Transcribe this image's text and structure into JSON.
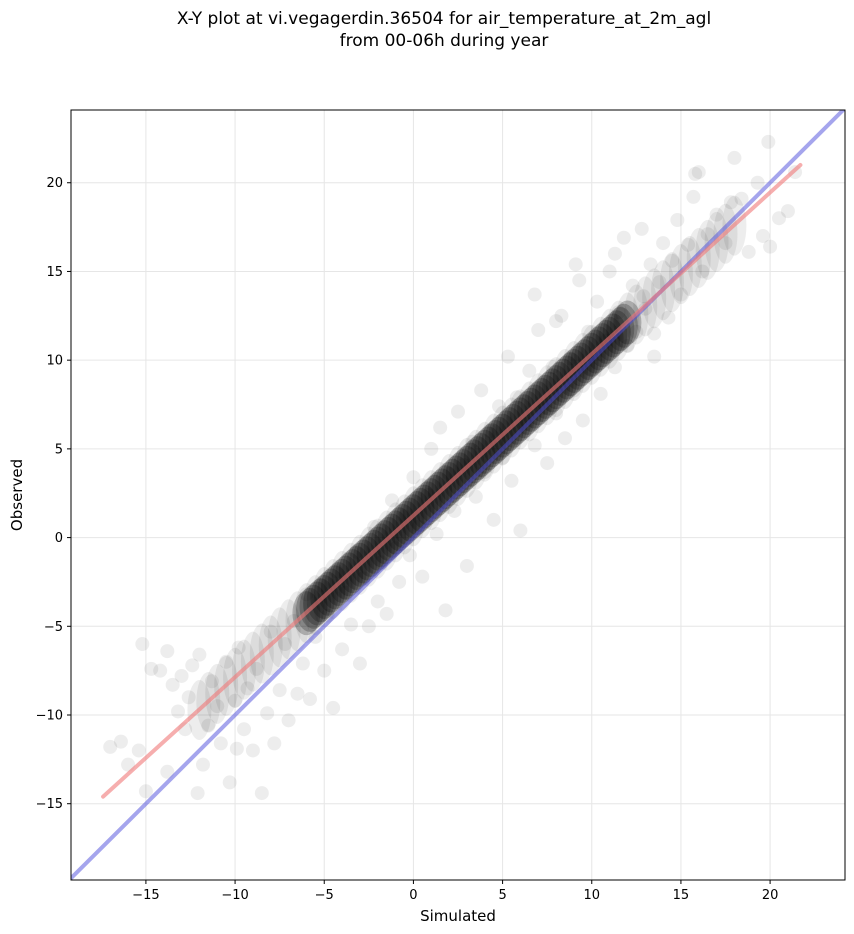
{
  "title_lines": [
    "X-Y plot at vi.vegagerdin.36504 for air_temperature_at_2m_agl",
    "from 00-06h during year"
  ],
  "chart_data": {
    "type": "scatter",
    "xlabel": "Simulated",
    "ylabel": "Observed",
    "xlim": [
      -19.2,
      24.2
    ],
    "ylim": [
      -19.3,
      24.1
    ],
    "x_ticks": [
      -15,
      -10,
      -5,
      0,
      5,
      10,
      15,
      20
    ],
    "y_ticks": [
      -15,
      -10,
      -5,
      0,
      5,
      10,
      15,
      20
    ],
    "x_tick_labels": [
      "−15",
      "−10",
      "−5",
      "0",
      "5",
      "10",
      "15",
      "20"
    ],
    "y_tick_labels": [
      "−15",
      "−10",
      "−5",
      "0",
      "5",
      "10",
      "15",
      "20"
    ],
    "grid": true,
    "point_color": "#000000",
    "point_alpha": 0.07,
    "reference_line": {
      "x": [
        -19.2,
        24.2
      ],
      "y": [
        -19.2,
        24.2
      ],
      "color": "#4b4bdc"
    },
    "fit_line": {
      "x": [
        -17.4,
        21.7
      ],
      "y": [
        -14.6,
        21.0
      ],
      "color": "#f07878"
    },
    "points": [
      [
        -17.0,
        -11.8
      ],
      [
        -16.4,
        -11.5
      ],
      [
        -16.0,
        -12.8
      ],
      [
        -15.4,
        -12.0
      ],
      [
        -15.0,
        -14.3
      ],
      [
        -15.2,
        -6.0
      ],
      [
        -14.7,
        -7.4
      ],
      [
        -14.2,
        -7.5
      ],
      [
        -13.8,
        -6.4
      ],
      [
        -13.5,
        -8.3
      ],
      [
        -13.2,
        -9.8
      ],
      [
        -13.0,
        -7.8
      ],
      [
        -12.8,
        -10.8
      ],
      [
        -12.6,
        -9.0
      ],
      [
        -12.4,
        -7.2
      ],
      [
        -12.0,
        -6.6
      ],
      [
        -11.8,
        -12.8
      ],
      [
        -11.5,
        -10.6
      ],
      [
        -11.3,
        -8.1
      ],
      [
        -11.0,
        -9.5
      ],
      [
        -10.8,
        -11.6
      ],
      [
        -10.5,
        -7.0
      ],
      [
        -10.3,
        -13.8
      ],
      [
        -10.0,
        -9.2
      ],
      [
        -9.8,
        -6.2
      ],
      [
        -9.5,
        -10.8
      ],
      [
        -9.3,
        -8.5
      ],
      [
        -9.0,
        -12.0
      ],
      [
        -8.8,
        -7.4
      ],
      [
        -8.5,
        -14.4
      ],
      [
        -8.2,
        -9.9
      ],
      [
        -8.0,
        -5.3
      ],
      [
        -7.8,
        -11.6
      ],
      [
        -7.5,
        -8.6
      ],
      [
        -7.2,
        -6.0
      ],
      [
        -7.0,
        -10.3
      ],
      [
        -6.7,
        -4.7
      ],
      [
        -6.5,
        -8.8
      ],
      [
        -6.2,
        -7.1
      ],
      [
        -6.0,
        -3.2
      ],
      [
        -5.8,
        -9.1
      ],
      [
        -5.5,
        -5.6
      ],
      [
        -5.2,
        -2.7
      ],
      [
        -5.0,
        -7.5
      ],
      [
        -4.8,
        -4.4
      ],
      [
        -4.5,
        -9.6
      ],
      [
        -4.3,
        -1.9
      ],
      [
        -4.0,
        -6.3
      ],
      [
        -3.8,
        -3.1
      ],
      [
        -3.5,
        -4.9
      ],
      [
        -3.2,
        -0.8
      ],
      [
        -3.0,
        -7.1
      ],
      [
        -2.8,
        -2.3
      ],
      [
        -2.5,
        -5.0
      ],
      [
        -2.2,
        0.6
      ],
      [
        -2.0,
        -3.6
      ],
      [
        -1.8,
        -1.4
      ],
      [
        -1.5,
        -4.3
      ],
      [
        -1.2,
        2.1
      ],
      [
        -1.0,
        -0.6
      ],
      [
        -0.8,
        -2.5
      ],
      [
        -0.5,
        1.2
      ],
      [
        -0.2,
        -1.0
      ],
      [
        0.0,
        3.4
      ],
      [
        0.3,
        0.6
      ],
      [
        0.5,
        -2.2
      ],
      [
        0.8,
        2.4
      ],
      [
        1.0,
        5.0
      ],
      [
        1.3,
        0.2
      ],
      [
        1.5,
        6.2
      ],
      [
        1.8,
        -4.1
      ],
      [
        2.0,
        3.6
      ],
      [
        2.3,
        1.5
      ],
      [
        2.5,
        7.1
      ],
      [
        2.8,
        4.1
      ],
      [
        3.0,
        -1.6
      ],
      [
        3.3,
        5.4
      ],
      [
        3.5,
        2.3
      ],
      [
        3.8,
        8.3
      ],
      [
        4.0,
        3.7
      ],
      [
        4.3,
        6.0
      ],
      [
        4.5,
        1.0
      ],
      [
        4.8,
        7.4
      ],
      [
        5.0,
        4.5
      ],
      [
        5.3,
        10.2
      ],
      [
        5.5,
        3.2
      ],
      [
        5.8,
        7.9
      ],
      [
        6.0,
        0.4
      ],
      [
        6.3,
        6.4
      ],
      [
        6.5,
        9.4
      ],
      [
        6.8,
        5.2
      ],
      [
        7.0,
        11.7
      ],
      [
        7.3,
        7.3
      ],
      [
        7.5,
        4.2
      ],
      [
        7.8,
        9.6
      ],
      [
        8.0,
        7.0
      ],
      [
        8.3,
        12.5
      ],
      [
        8.5,
        5.6
      ],
      [
        8.8,
        10.1
      ],
      [
        9.0,
        8.3
      ],
      [
        9.3,
        14.5
      ],
      [
        9.5,
        6.6
      ],
      [
        9.8,
        11.6
      ],
      [
        10.0,
        9.5
      ],
      [
        10.3,
        13.3
      ],
      [
        10.5,
        8.1
      ],
      [
        10.8,
        11.1
      ],
      [
        11.0,
        15.0
      ],
      [
        11.3,
        9.6
      ],
      [
        11.5,
        12.7
      ],
      [
        11.8,
        16.9
      ],
      [
        12.0,
        10.8
      ],
      [
        12.3,
        14.2
      ],
      [
        12.5,
        11.6
      ],
      [
        12.8,
        17.4
      ],
      [
        13.0,
        12.9
      ],
      [
        13.3,
        15.4
      ],
      [
        13.5,
        10.2
      ],
      [
        13.8,
        14.4
      ],
      [
        14.0,
        16.6
      ],
      [
        14.3,
        12.4
      ],
      [
        14.5,
        15.6
      ],
      [
        14.8,
        17.9
      ],
      [
        15.0,
        13.7
      ],
      [
        15.4,
        16.5
      ],
      [
        15.8,
        20.5
      ],
      [
        16.2,
        15.0
      ],
      [
        16.5,
        17.1
      ],
      [
        17.0,
        18.2
      ],
      [
        17.5,
        16.6
      ],
      [
        18.0,
        21.4
      ],
      [
        18.4,
        19.1
      ],
      [
        18.8,
        16.1
      ],
      [
        19.3,
        20.0
      ],
      [
        19.6,
        17.0
      ],
      [
        19.9,
        22.3
      ],
      [
        20.5,
        18.0
      ],
      [
        20.0,
        16.4
      ],
      [
        21.0,
        18.4
      ],
      [
        21.4,
        20.6
      ],
      [
        16.0,
        20.6
      ],
      [
        15.7,
        19.2
      ],
      [
        17.8,
        18.9
      ],
      [
        13.5,
        11.5
      ],
      [
        12.9,
        13.6
      ],
      [
        8.0,
        12.2
      ],
      [
        6.8,
        13.7
      ],
      [
        11.3,
        16.0
      ],
      [
        9.1,
        15.4
      ],
      [
        -12.1,
        -14.4
      ],
      [
        -13.8,
        -13.2
      ],
      [
        -9.9,
        -11.9
      ]
    ]
  }
}
